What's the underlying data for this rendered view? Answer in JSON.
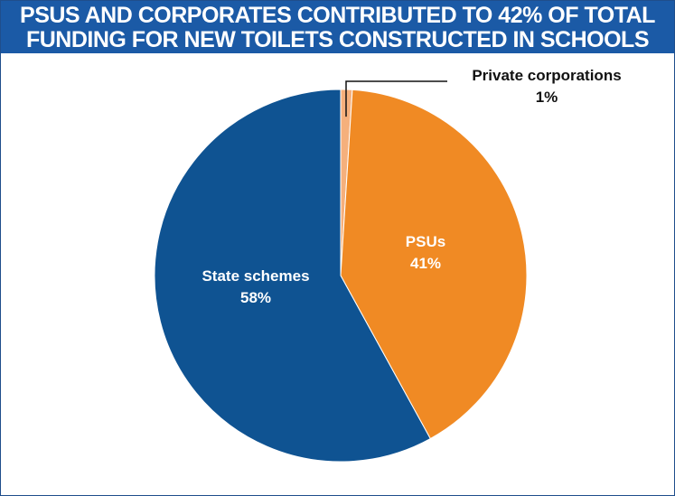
{
  "chart_data": {
    "type": "pie",
    "title_lines": [
      "PSUS AND CORPORATES CONTRIBUTED TO 42% OF TOTAL",
      "FUNDING FOR NEW TOILETS CONSTRUCTED IN SCHOOLS"
    ],
    "slices": [
      {
        "label": "Private corporations",
        "value": 1,
        "value_label": "1%",
        "color": "#f5b07c"
      },
      {
        "label": "PSUs",
        "value": 41,
        "value_label": "41%",
        "color": "#f08a24"
      },
      {
        "label": "State schemes",
        "value": 58,
        "value_label": "58%",
        "color": "#0f5392"
      }
    ],
    "start": "12 o'clock",
    "direction": "clockwise"
  },
  "colors": {
    "title_background": "#1b5aa6",
    "title_text": "#ffffff"
  }
}
